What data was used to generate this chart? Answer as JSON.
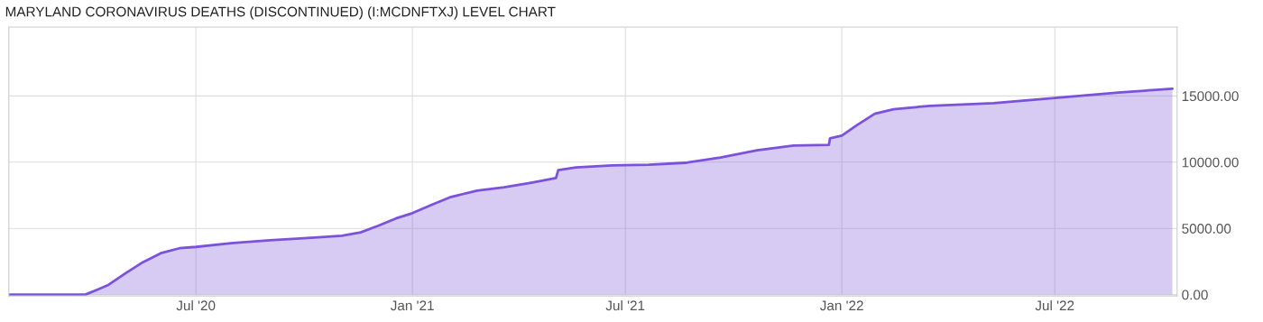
{
  "chart_data": {
    "type": "area",
    "title": "MARYLAND CORONAVIRUS DEATHS (DISCONTINUED) (I:MCDNFTXJ) LEVEL CHART",
    "x": [
      "2020-01-24",
      "2020-03-29",
      "2020-04-09",
      "2020-04-17",
      "2020-05-02",
      "2020-05-17",
      "2020-06-02",
      "2020-06-17",
      "2020-07-01",
      "2020-08-02",
      "2020-09-02",
      "2020-10-10",
      "2020-11-02",
      "2020-11-18",
      "2020-12-03",
      "2020-12-18",
      "2021-01-01",
      "2021-01-18",
      "2021-02-02",
      "2021-02-25",
      "2021-03-20",
      "2021-04-12",
      "2021-05-03",
      "2021-05-05",
      "2021-05-20",
      "2021-06-20",
      "2021-07-21",
      "2021-08-21",
      "2021-09-20",
      "2021-10-21",
      "2021-11-21",
      "2021-12-21",
      "2021-12-22",
      "2022-01-01",
      "2022-01-14",
      "2022-01-29",
      "2022-02-14",
      "2022-03-17",
      "2022-05-10",
      "2022-07-01",
      "2022-08-24",
      "2022-10-09"
    ],
    "series": [
      {
        "color": "#7b52d9",
        "values": [
          0,
          0,
          400,
          700,
          1600,
          2450,
          3150,
          3500,
          3600,
          3900,
          4100,
          4300,
          4450,
          4700,
          5200,
          5750,
          6150,
          6800,
          7350,
          7850,
          8100,
          8450,
          8800,
          9400,
          9600,
          9750,
          9800,
          9950,
          10350,
          10900,
          11250,
          11300,
          11800,
          12000,
          12800,
          13650,
          14000,
          14250,
          14450,
          14850,
          15250,
          15550
        ]
      }
    ],
    "xlim": [
      "2020-01-24",
      "2022-10-13"
    ],
    "xticks": [
      {
        "value": "2020-07-01",
        "label": "Jul '20"
      },
      {
        "value": "2021-01-01",
        "label": "Jan '21"
      },
      {
        "value": "2021-07-01",
        "label": "Jul '21"
      },
      {
        "value": "2022-01-01",
        "label": "Jan '22"
      },
      {
        "value": "2022-07-01",
        "label": "Jul '22"
      }
    ],
    "ylim": [
      -100,
      20200
    ],
    "yticks": [
      {
        "value": 0,
        "label": "0.00"
      },
      {
        "value": 5000,
        "label": "5000.00"
      },
      {
        "value": 10000,
        "label": "10000.00"
      },
      {
        "value": 15000,
        "label": "15000.00"
      }
    ],
    "grid": true
  }
}
